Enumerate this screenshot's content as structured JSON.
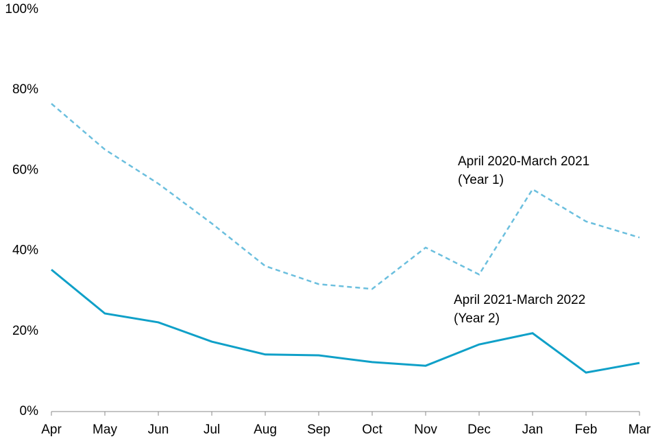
{
  "chart_data": {
    "type": "line",
    "categories": [
      "Apr",
      "May",
      "Jun",
      "Jul",
      "Aug",
      "Sep",
      "Oct",
      "Nov",
      "Dec",
      "Jan",
      "Feb",
      "Mar"
    ],
    "series": [
      {
        "label_lines": [
          "April 2020-March 2021",
          "(Year 1)"
        ],
        "color": "#6bbfde",
        "dashed": true,
        "values": [
          76.6,
          65.2,
          56.7,
          46.8,
          36.2,
          31.7,
          30.5,
          40.8,
          34.1,
          55.3,
          47.3,
          43.3
        ]
      },
      {
        "label_lines": [
          "April 2021-March 2022",
          "(Year 2)"
        ],
        "color": "#0fa0c8",
        "dashed": false,
        "values": [
          35.3,
          24.4,
          22.2,
          17.4,
          14.2,
          14.0,
          12.3,
          11.4,
          16.7,
          19.5,
          9.7,
          12.1
        ]
      }
    ],
    "ylim": [
      0,
      100
    ],
    "yticks": [
      {
        "value": 0,
        "label": "0%"
      },
      {
        "value": 20,
        "label": "20%"
      },
      {
        "value": 40,
        "label": "40%"
      },
      {
        "value": 60,
        "label": "60%"
      },
      {
        "value": 80,
        "label": "80%"
      },
      {
        "value": 100,
        "label": "100%"
      }
    ],
    "grid": false
  }
}
